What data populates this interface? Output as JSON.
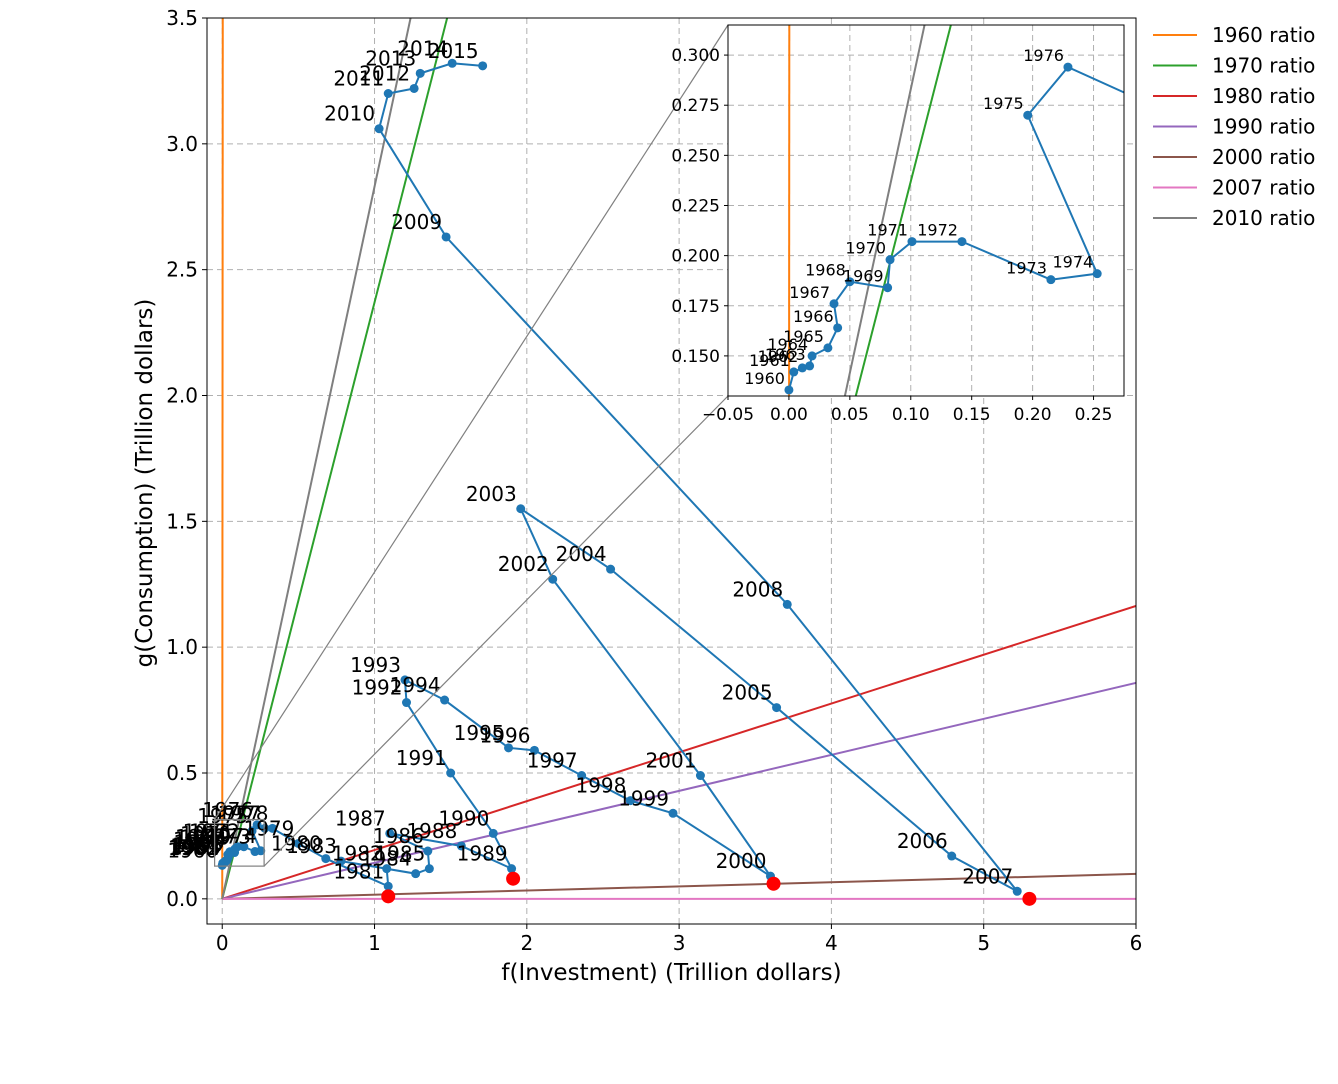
{
  "chart_data": {
    "type": "line",
    "xlabel": "f(Investment) (Trillion dollars)",
    "ylabel": "g(Consumption) (Trillion dollars)",
    "xlim": [
      -0.1,
      6
    ],
    "ylim": [
      -0.1,
      3.5
    ],
    "grid": true,
    "legend_placement": "outside-top-right",
    "x_ticks": [
      "0",
      "1",
      "2",
      "3",
      "4",
      "5",
      "6"
    ],
    "y_ticks": [
      "0.0",
      "0.5",
      "1.0",
      "1.5",
      "2.0",
      "2.5",
      "3.0",
      "3.5"
    ],
    "ratio_lines": [
      {
        "name": "1960 ratio",
        "color": "#ff7f0e",
        "slope": 1000
      },
      {
        "name": "1970 ratio",
        "color": "#2ca02c",
        "slope": 2.37
      },
      {
        "name": "1980 ratio",
        "color": "#d62728",
        "slope": 0.194
      },
      {
        "name": "1990 ratio",
        "color": "#9467bd",
        "slope": 0.143
      },
      {
        "name": "2000 ratio",
        "color": "#8c564b",
        "slope": 0.0165
      },
      {
        "name": "2007 ratio",
        "color": "#e377c2",
        "slope": 0.0
      },
      {
        "name": "2010 ratio",
        "color": "#7f7f7f",
        "slope": 2.83
      }
    ],
    "series": [
      {
        "color": "#1f77b4",
        "points": [
          {
            "year": "1960",
            "x": 0.0,
            "y": 0.133
          },
          {
            "year": "1961",
            "x": 0.004,
            "y": 0.142
          },
          {
            "year": "1962",
            "x": 0.011,
            "y": 0.144
          },
          {
            "year": "1963",
            "x": 0.017,
            "y": 0.145
          },
          {
            "year": "1964",
            "x": 0.019,
            "y": 0.15
          },
          {
            "year": "1965",
            "x": 0.032,
            "y": 0.154
          },
          {
            "year": "1966",
            "x": 0.04,
            "y": 0.164
          },
          {
            "year": "1967",
            "x": 0.037,
            "y": 0.176
          },
          {
            "year": "1968",
            "x": 0.05,
            "y": 0.187
          },
          {
            "year": "1969",
            "x": 0.081,
            "y": 0.184
          },
          {
            "year": "1970",
            "x": 0.083,
            "y": 0.198
          },
          {
            "year": "1971",
            "x": 0.101,
            "y": 0.207
          },
          {
            "year": "1972",
            "x": 0.142,
            "y": 0.207
          },
          {
            "year": "1973",
            "x": 0.215,
            "y": 0.188
          },
          {
            "year": "1974",
            "x": 0.253,
            "y": 0.191
          },
          {
            "year": "1975",
            "x": 0.196,
            "y": 0.27
          },
          {
            "year": "1976",
            "x": 0.229,
            "y": 0.294
          },
          {
            "year": "1977",
            "x": 0.28,
            "y": 0.28
          },
          {
            "year": "1978",
            "x": 0.33,
            "y": 0.28
          },
          {
            "year": "1979",
            "x": 0.5,
            "y": 0.22
          },
          {
            "year": "1980",
            "x": 0.68,
            "y": 0.16
          },
          {
            "year": "1981",
            "x": 1.09,
            "y": 0.05
          },
          {
            "year": "1982",
            "x": 1.08,
            "y": 0.12
          },
          {
            "year": "1983",
            "x": 0.78,
            "y": 0.15
          },
          {
            "year": "1984",
            "x": 1.27,
            "y": 0.1
          },
          {
            "year": "1985",
            "x": 1.36,
            "y": 0.12
          },
          {
            "year": "1986",
            "x": 1.35,
            "y": 0.19
          },
          {
            "year": "1987",
            "x": 1.1,
            "y": 0.26
          },
          {
            "year": "1988",
            "x": 1.57,
            "y": 0.21
          },
          {
            "year": "1989",
            "x": 1.9,
            "y": 0.12
          },
          {
            "year": "1990",
            "x": 1.78,
            "y": 0.26
          },
          {
            "year": "1991",
            "x": 1.5,
            "y": 0.5
          },
          {
            "year": "1992",
            "x": 1.21,
            "y": 0.78
          },
          {
            "year": "1993",
            "x": 1.2,
            "y": 0.87
          },
          {
            "year": "1994",
            "x": 1.46,
            "y": 0.79
          },
          {
            "year": "1995",
            "x": 1.88,
            "y": 0.6
          },
          {
            "year": "1996",
            "x": 2.05,
            "y": 0.59
          },
          {
            "year": "1997",
            "x": 2.36,
            "y": 0.49
          },
          {
            "year": "1998",
            "x": 2.68,
            "y": 0.39
          },
          {
            "year": "1999",
            "x": 2.96,
            "y": 0.34
          },
          {
            "year": "2000",
            "x": 3.6,
            "y": 0.09
          },
          {
            "year": "2001",
            "x": 3.14,
            "y": 0.49
          },
          {
            "year": "2002",
            "x": 2.17,
            "y": 1.27
          },
          {
            "year": "2003",
            "x": 1.96,
            "y": 1.55
          },
          {
            "year": "2004",
            "x": 2.55,
            "y": 1.31
          },
          {
            "year": "2005",
            "x": 3.64,
            "y": 0.76
          },
          {
            "year": "2006",
            "x": 4.79,
            "y": 0.17
          },
          {
            "year": "2007",
            "x": 5.22,
            "y": 0.03
          },
          {
            "year": "2008",
            "x": 3.71,
            "y": 1.17
          },
          {
            "year": "2009",
            "x": 1.47,
            "y": 2.63
          },
          {
            "year": "2010",
            "x": 1.03,
            "y": 3.06
          },
          {
            "year": "2011",
            "x": 1.09,
            "y": 3.2
          },
          {
            "year": "2012",
            "x": 1.26,
            "y": 3.22
          },
          {
            "year": "2013",
            "x": 1.3,
            "y": 3.28
          },
          {
            "year": "2014",
            "x": 1.51,
            "y": 3.32
          },
          {
            "year": "2015",
            "x": 1.71,
            "y": 3.31
          }
        ]
      }
    ],
    "highlight_points": [
      {
        "year": "1981",
        "x": 1.09,
        "y": 0.01
      },
      {
        "year": "1989",
        "x": 1.91,
        "y": 0.08
      },
      {
        "year": "2000",
        "x": 3.62,
        "y": 0.06
      },
      {
        "year": "2007",
        "x": 5.3,
        "y": 0.0
      }
    ],
    "inset": {
      "xlim": [
        -0.05,
        0.275
      ],
      "ylim": [
        0.13,
        0.315
      ],
      "x_ticks": [
        "−0.05",
        "0.00",
        "0.05",
        "0.10",
        "0.15",
        "0.20",
        "0.25"
      ],
      "y_ticks": [
        "0.150",
        "0.175",
        "0.200",
        "0.225",
        "0.250",
        "0.275",
        "0.300"
      ]
    }
  }
}
